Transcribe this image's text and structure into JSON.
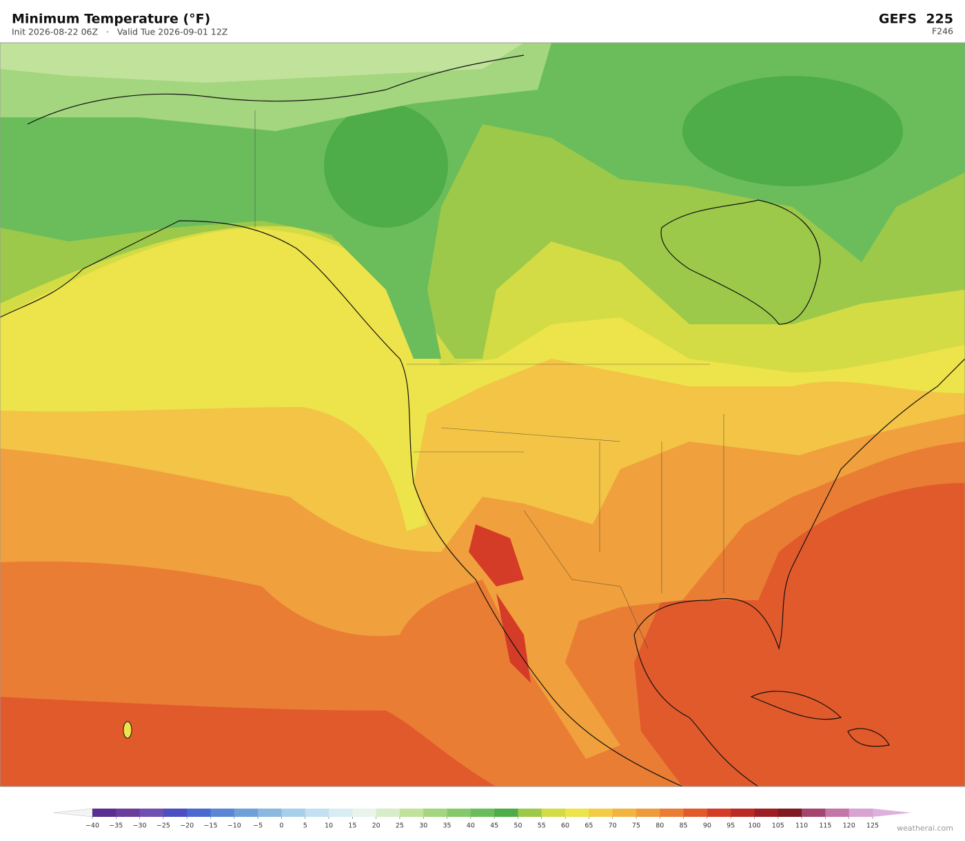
{
  "header": {
    "title": "Minimum Temperature  (°F)",
    "subtitle": "Init 2026-08-22 06Z   ·   Valid Tue 2026-09-01 12Z",
    "model": "GEFS  225",
    "forecast_hour": "F246"
  },
  "colorbar": {
    "ticks": [
      {
        "value": -40,
        "label": "−40"
      },
      {
        "value": -35,
        "label": "−35"
      },
      {
        "value": -30,
        "label": "−30"
      },
      {
        "value": -25,
        "label": "−25"
      },
      {
        "value": -20,
        "label": "−20"
      },
      {
        "value": -15,
        "label": "−15"
      },
      {
        "value": -10,
        "label": "−10"
      },
      {
        "value": -5,
        "label": "−5"
      },
      0,
      5,
      10,
      15,
      20,
      25,
      30,
      35,
      40,
      45,
      50,
      55,
      60,
      65,
      70,
      75,
      80,
      85,
      90,
      95,
      100,
      105,
      110,
      115,
      120,
      125
    ],
    "colors": [
      "#5a2d91",
      "#6a3d9a",
      "#6f4fb0",
      "#4b4fc0",
      "#4a6ad0",
      "#5b86d4",
      "#6fa0d8",
      "#8ab8e0",
      "#a6cfe9",
      "#c2e0f0",
      "#d8ecf3",
      "#e8f4ec",
      "#d7edc8",
      "#c0e29b",
      "#a3d67e",
      "#86c96a",
      "#6bbd5c",
      "#4ead48",
      "#9cc94a",
      "#d4dc45",
      "#ede34a",
      "#f3cb45",
      "#f1b440",
      "#ee9b3b",
      "#e97d34",
      "#e15a2c",
      "#d43c28",
      "#bb2925",
      "#9e1d22",
      "#7f1a1e",
      "#a3456f",
      "#c377a8",
      "#d9a3d1"
    ],
    "under_color": "#f4f4f4",
    "over_color": "#e0b0dc"
  },
  "footer": {
    "watermark": "weatherai.com"
  }
}
